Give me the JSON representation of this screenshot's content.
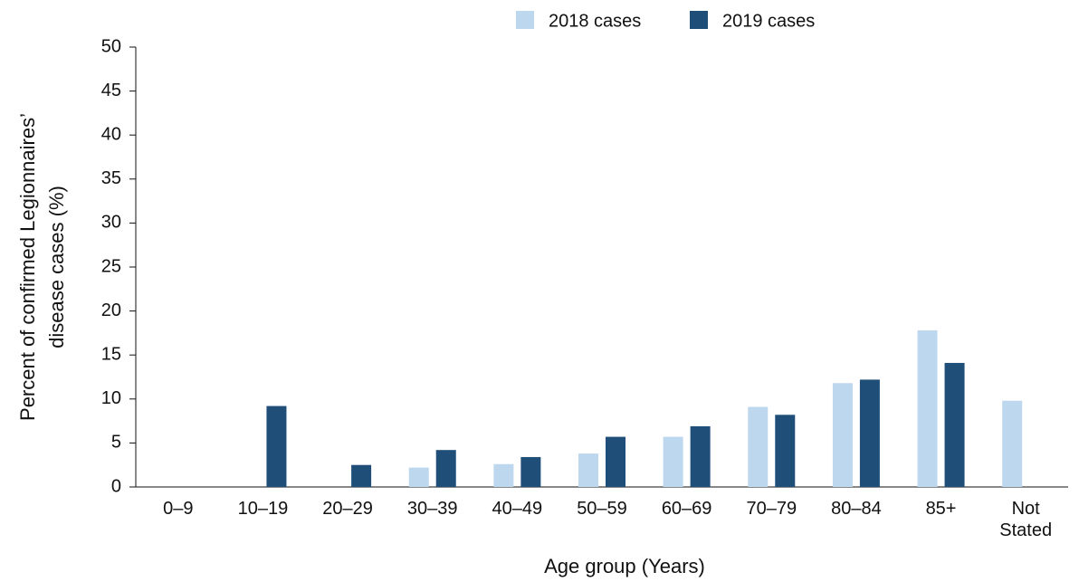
{
  "chart_data": {
    "type": "bar",
    "xlabel": "Age group (Years)",
    "ylabel": [
      "Percent of confirmed Legionnaires’",
      "disease cases (%)"
    ],
    "categories": [
      "0–9",
      "10–19",
      "20–29",
      "30–39",
      "40–49",
      "50–59",
      "60–69",
      "70–79",
      "80–84",
      "85+",
      "Not Stated"
    ],
    "series": [
      {
        "name": "2018 cases",
        "color": "#bdd7ee",
        "values": [
          0,
          0,
          0,
          2.2,
          2.6,
          3.8,
          5.7,
          9.1,
          11.8,
          17.8,
          9.8
        ]
      },
      {
        "name": "2019 cases",
        "color": "#1f4e79",
        "values": [
          0,
          9.2,
          2.5,
          4.2,
          3.4,
          5.7,
          6.9,
          8.2,
          12.2,
          14.1,
          0
        ]
      }
    ],
    "ylim": [
      0,
      50
    ],
    "yticks": [
      0,
      5,
      10,
      15,
      20,
      25,
      30,
      35,
      40,
      45,
      50
    ],
    "grid": false,
    "legend": "top"
  }
}
